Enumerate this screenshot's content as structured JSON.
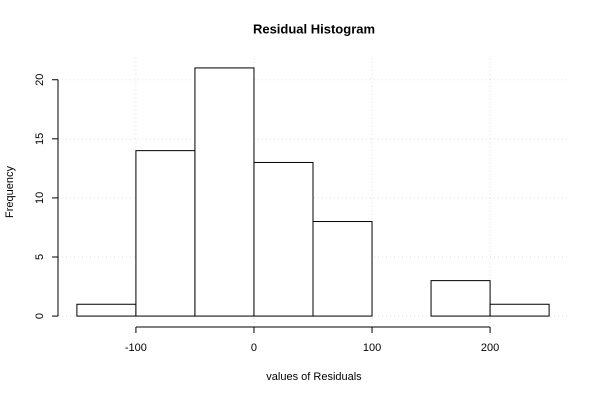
{
  "chart_data": {
    "type": "histogram",
    "title": "Residual Histogram",
    "xlabel": "values of Residuals",
    "ylabel": "Frequency",
    "bins": [
      -150,
      -100,
      -50,
      0,
      50,
      100,
      150,
      200,
      250
    ],
    "values": [
      1,
      14,
      21,
      13,
      8,
      0,
      3,
      1
    ],
    "color": "#ffffff",
    "xlim": [
      -166,
      266
    ],
    "ylim": [
      -0.84,
      21.84
    ],
    "xticks": [
      -100,
      0,
      100,
      200
    ],
    "yticks": [
      0,
      5,
      10,
      15,
      20
    ],
    "grid": true
  }
}
